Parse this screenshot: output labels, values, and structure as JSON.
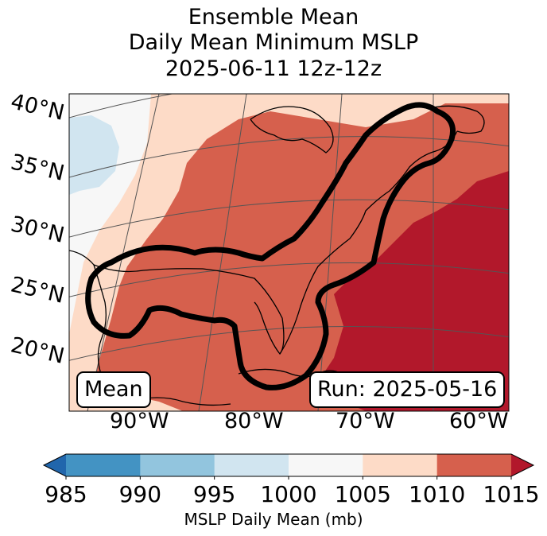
{
  "title": {
    "line1": "Ensemble Mean",
    "line2": "Daily Mean Minimum MSLP",
    "line3": "2025-06-11 12z-12z"
  },
  "map": {
    "lat_labels": [
      "40°N",
      "35°N",
      "30°N",
      "25°N",
      "20°N"
    ],
    "lon_labels": [
      "90°W",
      "80°W",
      "70°W",
      "60°W"
    ],
    "mean_label": "Mean",
    "run_label": "Run: 2025-05-16"
  },
  "colorbar": {
    "ticks": [
      "985",
      "990",
      "995",
      "1000",
      "1005",
      "1010",
      "1015"
    ],
    "label": "MSLP Daily Mean (mb)",
    "colors": [
      "#2166ac",
      "#4393c3",
      "#92c5de",
      "#d1e5f0",
      "#f7f7f7",
      "#fddbc7",
      "#d6604d",
      "#b2182b"
    ]
  }
}
